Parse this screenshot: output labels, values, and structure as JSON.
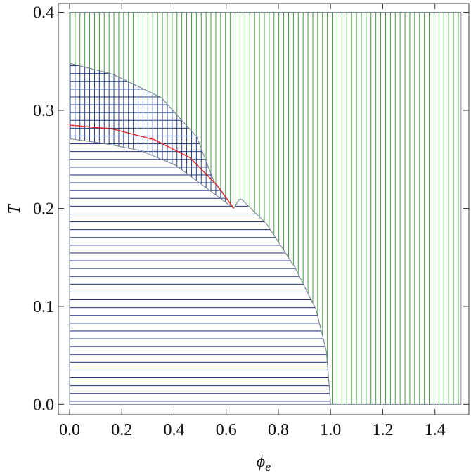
{
  "chart_data": {
    "type": "phase",
    "xlabel": "ϕ",
    "xlabel_sub": "e",
    "ylabel": "T",
    "xlim": [
      -0.043,
      1.53
    ],
    "ylim": [
      -0.0105,
      0.409
    ],
    "xticks": [
      {
        "value": 0,
        "label": "0.0"
      },
      0.2,
      0.4,
      0.6,
      0.8,
      {
        "value": 1,
        "label": "1.0"
      },
      1.2,
      1.4
    ],
    "yticks": [
      {
        "value": 0,
        "label": "0.0"
      },
      0.1,
      0.2,
      0.3,
      0.4
    ],
    "regions": [
      {
        "hatch": "vertical",
        "color": "#3c9c3c",
        "x": [
          0,
          1.5,
          1.5,
          1.0,
          0.997,
          0.984,
          0.944,
          0.863,
          0.755,
          0.66,
          0.65,
          0.629,
          0.554,
          0.487,
          0.352,
          0.164,
          0
        ],
        "y": [
          0.4,
          0.4,
          0,
          0,
          0.011,
          0.054,
          0.097,
          0.14,
          0.184,
          0.209,
          0.209,
          0.2,
          0.227,
          0.273,
          0.313,
          0.337,
          0.348
        ]
      },
      {
        "hatch": "horizontal",
        "color": "#1f2a80",
        "x": [
          0,
          1.0,
          0.997,
          0.984,
          0.944,
          0.863,
          0.755,
          0.66,
          0.65,
          0.629,
          0.513,
          0.406,
          0.272,
          0.137,
          0
        ],
        "y": [
          0,
          0,
          0.011,
          0.054,
          0.097,
          0.14,
          0.184,
          0.209,
          0.209,
          0.2,
          0.223,
          0.244,
          0.259,
          0.266,
          0.271
        ]
      },
      {
        "hatch": "both",
        "color": "#1f3a80",
        "x": [
          0,
          0.164,
          0.352,
          0.487,
          0.554,
          0.629,
          0.513,
          0.406,
          0.272,
          0.137,
          0
        ],
        "y": [
          0.348,
          0.337,
          0.313,
          0.273,
          0.227,
          0.2,
          0.223,
          0.244,
          0.259,
          0.266,
          0.271
        ]
      }
    ],
    "curves": [
      {
        "color": "#e02424",
        "x": [
          0,
          0.164,
          0.325,
          0.46,
          0.567,
          0.629
        ],
        "y": [
          0.285,
          0.281,
          0.27,
          0.252,
          0.223,
          0.2
        ]
      }
    ]
  }
}
